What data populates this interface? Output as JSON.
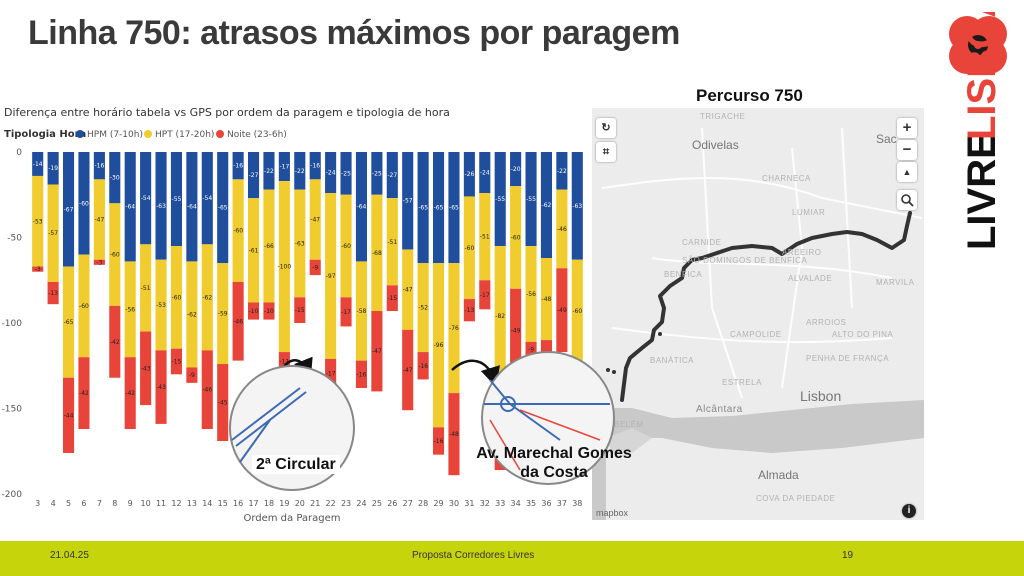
{
  "slide": {
    "title": "Linha 750: atrasos máximos por paragem",
    "footer_date": "21.04.25",
    "footer_center": "Proposta Corredores Livres",
    "footer_page": "19",
    "logo_text": "LIVRE LISBOA"
  },
  "map": {
    "title": "Percurso 750",
    "zoom_in": "+",
    "zoom_out": "−",
    "compass": "▲",
    "places": [
      "Odivelas",
      "Lisbon",
      "Almada",
      "Alcântara",
      "CARNIDE",
      "LUMIAR",
      "ALVALADE",
      "ARROIOS",
      "CAMPOLIDE",
      "PENHA DE FRANÇA",
      "BELÉM",
      "BENFICA",
      "TRIGACHE",
      "CHARNECA",
      "COVA DA PIEDADE",
      "SÃO DOMINGOS DE BENFICA",
      "MARVILA",
      "AREEIRO",
      "ESTRELA",
      "BANÁTICA",
      "ALTO DO PINA",
      "Sac"
    ],
    "attribution": "mapbox",
    "colors": {
      "water": "#c9c9c9",
      "land": "#ececec",
      "route": "#333333"
    }
  },
  "callouts": {
    "circular": "2ª Circular",
    "marechal_line1": "Av. Marechal Gomes",
    "marechal_line2": "da Costa"
  },
  "chart_data": {
    "type": "bar",
    "stacked": true,
    "title": "Diferença entre horário tabela vs GPS por ordem da paragem e tipologia de hora",
    "xlabel": "Ordem da Paragem",
    "ylabel": "",
    "legend_title": "Tipologia Hora",
    "ylim": [
      -200,
      0
    ],
    "yticks": [
      0,
      -50,
      -100,
      -150,
      -200
    ],
    "categories": [
      "3",
      "4",
      "5",
      "6",
      "7",
      "8",
      "9",
      "10",
      "11",
      "12",
      "13",
      "14",
      "15",
      "16",
      "17",
      "18",
      "19",
      "20",
      "21",
      "22",
      "23",
      "24",
      "25",
      "26",
      "27",
      "28",
      "29",
      "30",
      "31",
      "32",
      "33",
      "34",
      "35",
      "36",
      "37",
      "38"
    ],
    "series": [
      {
        "name": "HPM (7-10h)",
        "color": "#1f4e9c",
        "values": [
          -14,
          -19,
          -67,
          -60,
          -16,
          -30,
          -64,
          -54,
          -63,
          -55,
          -64,
          -54,
          -65,
          -16,
          -27,
          -22,
          -17,
          -22,
          -16,
          -24,
          -25,
          -64,
          -25,
          -27,
          -57,
          -65,
          -65,
          -65,
          -26,
          -24,
          -55,
          -20,
          -55,
          -62,
          -22,
          -63
        ]
      },
      {
        "name": "HPT (17-20h)",
        "color": "#f0cc2e",
        "values": [
          -53,
          -57,
          -65,
          -60,
          -47,
          -60,
          -56,
          -51,
          -53,
          -60,
          -62,
          -62,
          -59,
          -60,
          -61,
          -66,
          -100,
          -63,
          -47,
          -97,
          -60,
          -58,
          -68,
          -51,
          -47,
          -52,
          -96,
          -76,
          -60,
          -51,
          -82,
          -60,
          -56,
          -48,
          -46,
          -60
        ]
      },
      {
        "name": "Noite (23-6h)",
        "color": "#e8443a",
        "values": [
          -3,
          -13,
          -44,
          -42,
          -3,
          -42,
          -42,
          -43,
          -43,
          -15,
          -9,
          -46,
          -45,
          -46,
          -10,
          -10,
          -11,
          -15,
          -9,
          -17,
          -17,
          -16,
          -47,
          -15,
          -47,
          -16,
          -16,
          -48,
          -13,
          -17,
          -49,
          -49,
          -9,
          -16,
          -49,
          -3
        ]
      }
    ]
  }
}
